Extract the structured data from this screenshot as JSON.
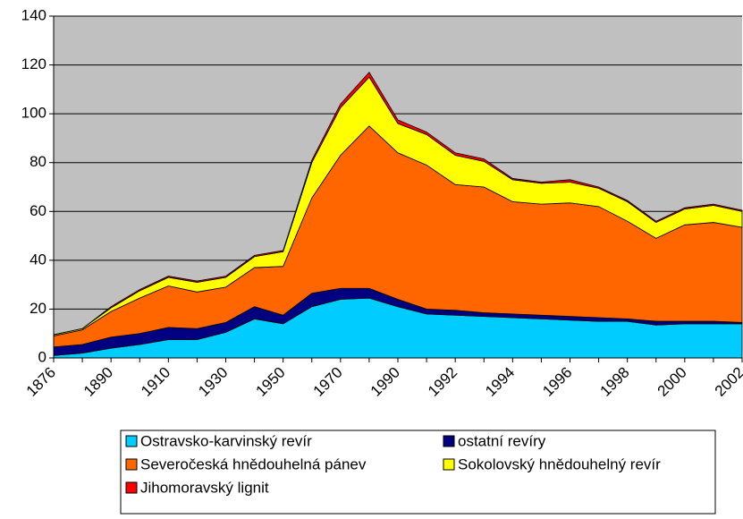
{
  "chart_data": {
    "type": "area",
    "stacked": true,
    "legend": "bottom",
    "grid": true,
    "background": "#c0c0c0",
    "categories": [
      "1876",
      null,
      "1890",
      null,
      "1910",
      null,
      "1930",
      null,
      "1950",
      null,
      "1970",
      null,
      "1990",
      null,
      "1992",
      null,
      "1994",
      null,
      "1996",
      null,
      "1998",
      null,
      "2000",
      null,
      "2002"
    ],
    "series": [
      {
        "name": "Ostravsko-karvinský revír",
        "color": "#00ccff",
        "values": [
          1,
          2,
          4,
          5.5,
          7.5,
          7.5,
          10.5,
          16,
          14,
          21,
          24,
          24.5,
          21,
          18,
          17.5,
          17,
          16.5,
          16,
          15.5,
          15,
          15,
          13.5,
          14,
          14,
          14
        ]
      },
      {
        "name": "ostatní revíry",
        "color": "#000080",
        "values": [
          3.5,
          3.5,
          4.5,
          4.5,
          5,
          4.5,
          4,
          5,
          3.5,
          5.5,
          4.5,
          4,
          3,
          2,
          2,
          1.5,
          1.5,
          1.5,
          1.5,
          1.5,
          1,
          1.5,
          1,
          1,
          0.5
        ]
      },
      {
        "name": "Severočeská hnědouhelná pánev",
        "color": "#ff6600",
        "values": [
          4.5,
          6,
          10.5,
          14.5,
          17,
          15,
          14.5,
          16,
          20,
          39,
          54.5,
          66.5,
          60,
          59,
          51.5,
          51.5,
          46,
          45.5,
          46.5,
          45.5,
          40,
          34,
          39.5,
          40.5,
          39
        ]
      },
      {
        "name": "Sokolovský hnědouhelný revír",
        "color": "#ffff00",
        "values": [
          0.5,
          0.5,
          1.5,
          3,
          3.5,
          4,
          4,
          4.5,
          6,
          14.5,
          19.5,
          20,
          12,
          12.5,
          12,
          10.5,
          9,
          8.5,
          8.5,
          7.5,
          8,
          6.5,
          6.5,
          7,
          6.5
        ]
      },
      {
        "name": "Jihomoravský lignit",
        "color": "#ff0000",
        "values": [
          0,
          0,
          0.5,
          0.5,
          0.5,
          0.5,
          0.5,
          0.5,
          0.5,
          1,
          1.5,
          2,
          1.5,
          1,
          1,
          1,
          0.5,
          0.5,
          1,
          0.5,
          0.5,
          0.5,
          0.5,
          0.5,
          0.5
        ]
      }
    ],
    "ylim": [
      0,
      140
    ],
    "yticks": [
      0,
      20,
      40,
      60,
      80,
      100,
      120,
      140
    ]
  }
}
